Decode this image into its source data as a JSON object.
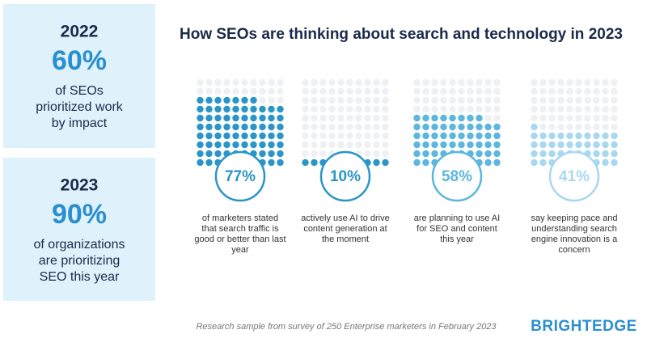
{
  "panels": [
    {
      "year": "2022",
      "stat": "60%",
      "text": [
        "of SEOs",
        "prioritized work",
        "by impact"
      ]
    },
    {
      "year": "2023",
      "stat": "90%",
      "text": [
        "of organizations",
        "are prioritizing",
        "SEO this year"
      ]
    }
  ],
  "title": "How SEOs are thinking about search and technology in 2023",
  "items": [
    {
      "value": 77,
      "value_label": "77%",
      "color": "#2a95c8",
      "caption": [
        "of marketers stated",
        "that search traffic is",
        "good or better than last",
        "year"
      ]
    },
    {
      "value": 10,
      "value_label": "10%",
      "color": "#2a95c8",
      "caption": [
        "actively use AI to drive",
        "content generation at",
        "the moment"
      ]
    },
    {
      "value": 58,
      "value_label": "58%",
      "color": "#5cb6de",
      "caption": [
        "are planning to use AI",
        "for SEO and content",
        "this year"
      ]
    },
    {
      "value": 41,
      "value_label": "41%",
      "color": "#a8d8ef",
      "caption": [
        "say keeping pace and",
        "understanding search",
        "engine innovation is a",
        "concern"
      ]
    }
  ],
  "footer": "Research sample from survey of 250 Enterprise marketers in February 2023",
  "brand": "BRIGHTEDGE"
}
